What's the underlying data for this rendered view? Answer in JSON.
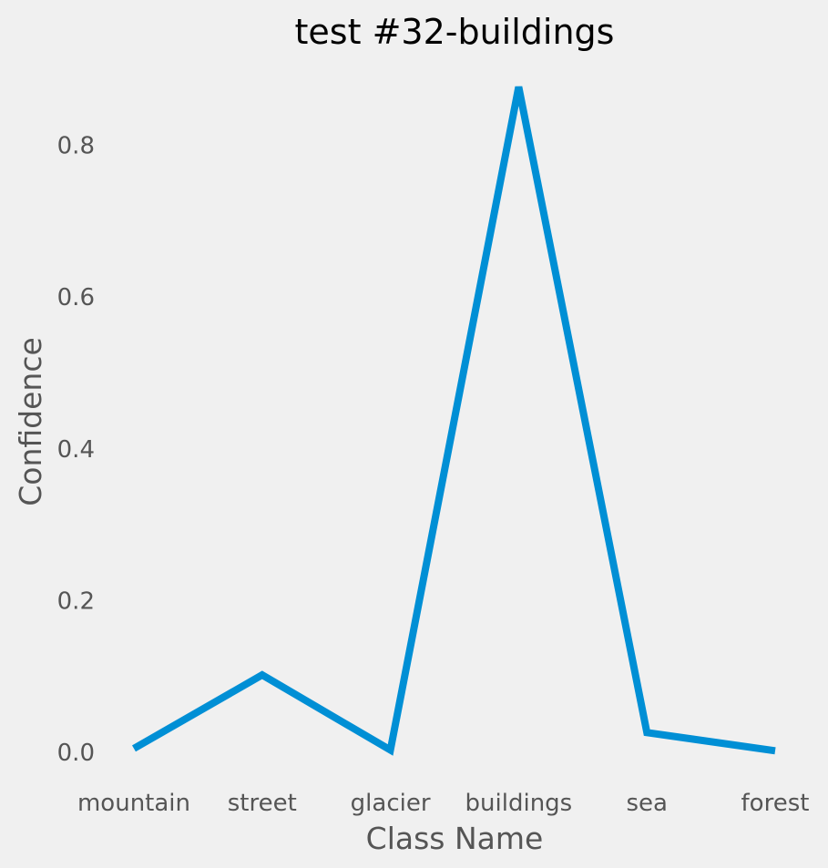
{
  "chart_data": {
    "type": "line",
    "title": "test #32-buildings",
    "xlabel": "Class Name",
    "ylabel": "Confidence",
    "categories": [
      "mountain",
      "street",
      "glacier",
      "buildings",
      "sea",
      "forest"
    ],
    "series": [
      {
        "values": [
          0.005,
          0.102,
          0.003,
          0.877,
          0.026,
          0.002
        ],
        "color": "#008fd5"
      }
    ],
    "yticks": [
      0.0,
      0.2,
      0.4,
      0.6,
      0.8
    ],
    "ytick_labels": [
      "0.0",
      "0.2",
      "0.4",
      "0.6",
      "0.8"
    ],
    "ylim": [
      -0.04,
      0.92
    ],
    "grid": false,
    "background": "#f0f0f0",
    "text_color": "#555555"
  }
}
